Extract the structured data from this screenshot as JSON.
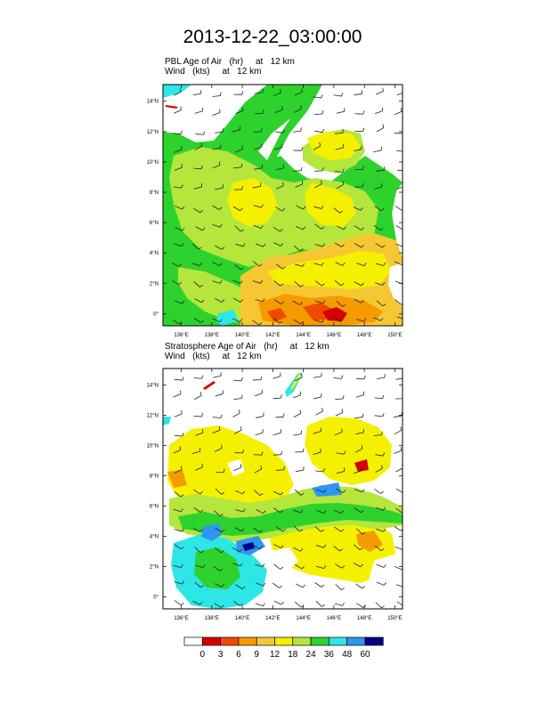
{
  "title": "2013-12-22_03:00:00",
  "panels": [
    {
      "id": "pbl",
      "field_label": "PBL Age of Air",
      "field_units": "(hr)",
      "field_level": "at   12 km",
      "wind_label": "Wind",
      "wind_units": "(kts)",
      "wind_level": "at   12 km"
    },
    {
      "id": "strat",
      "field_label": "Stratosphere Age of Air",
      "field_units": "(hr)",
      "field_level": "at   12 km",
      "wind_label": "Wind",
      "wind_units": "(kts)",
      "wind_level": "at   12 km"
    }
  ],
  "map": {
    "lat_ticks": [
      "0°",
      "2°N",
      "4°N",
      "6°N",
      "8°N",
      "10°N",
      "12°N",
      "14°N"
    ],
    "lon_ticks": [
      "136°E",
      "138°E",
      "140°E",
      "142°E",
      "144°E",
      "146°E",
      "148°E",
      "150°E"
    ]
  },
  "colorbar": {
    "labels": [
      "0",
      "3",
      "6",
      "9",
      "12",
      "18",
      "24",
      "36",
      "48",
      "60"
    ],
    "colors": [
      "#ffffff",
      "#d40000",
      "#ee4a00",
      "#f59a00",
      "#f5c832",
      "#f5f000",
      "#b4e63c",
      "#2dd22d",
      "#2de6e6",
      "#2d96f0",
      "#00008c"
    ]
  },
  "palette": {
    "white": "#ffffff",
    "red": "#d40000",
    "orange_red": "#ee4a00",
    "orange": "#f59a00",
    "gold": "#f5c832",
    "yellow": "#f5f000",
    "light_green": "#b4e63c",
    "green": "#2dd22d",
    "cyan": "#2de6e6",
    "blue": "#2d96f0",
    "navy": "#00008c"
  }
}
